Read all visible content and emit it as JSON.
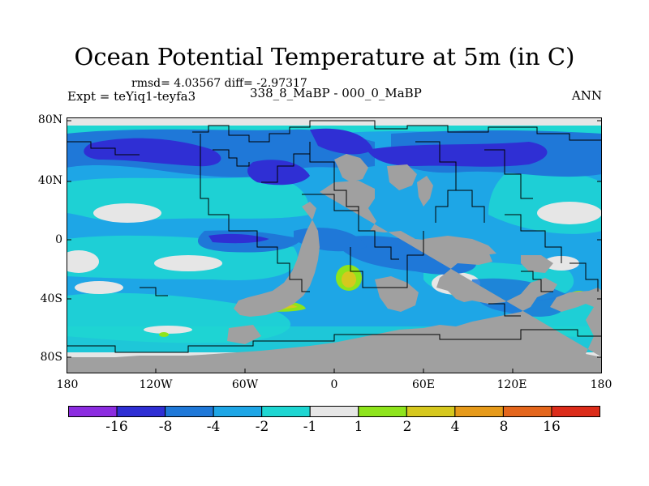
{
  "figure": {
    "title": "Ocean Potential Temperature at 5m (in C)",
    "stats_text": "rmsd= 4.03567 diff= -2.97317",
    "experiment_text": "Expt = teYiq1-teyfa3",
    "period_text": "338_8_MaBP - 000_0_MaBP",
    "season_text": "ANN"
  },
  "axes": {
    "lat_ticks": [
      "80N",
      "40N",
      "0",
      "40S",
      "80S"
    ],
    "lon_ticks": [
      "180",
      "120W",
      "60W",
      "0",
      "60E",
      "120E",
      "180"
    ]
  },
  "colorbar": {
    "labels": [
      "-16",
      "-8",
      "-4",
      "-2",
      "-1",
      "1",
      "2",
      "4",
      "8",
      "16"
    ],
    "colors": [
      "#8c2ce0",
      "#2f2fd4",
      "#1f78d8",
      "#1ea6e6",
      "#1ed6d2",
      "#e6e6e6",
      "#8ee41c",
      "#d6c81e",
      "#e69a1a",
      "#e4661c",
      "#dc2c1a"
    ]
  },
  "map_colors": {
    "land": "#a0a0a0",
    "ocean_base": "#1ea6e6",
    "sea_ice": "#e6e6e6"
  }
}
